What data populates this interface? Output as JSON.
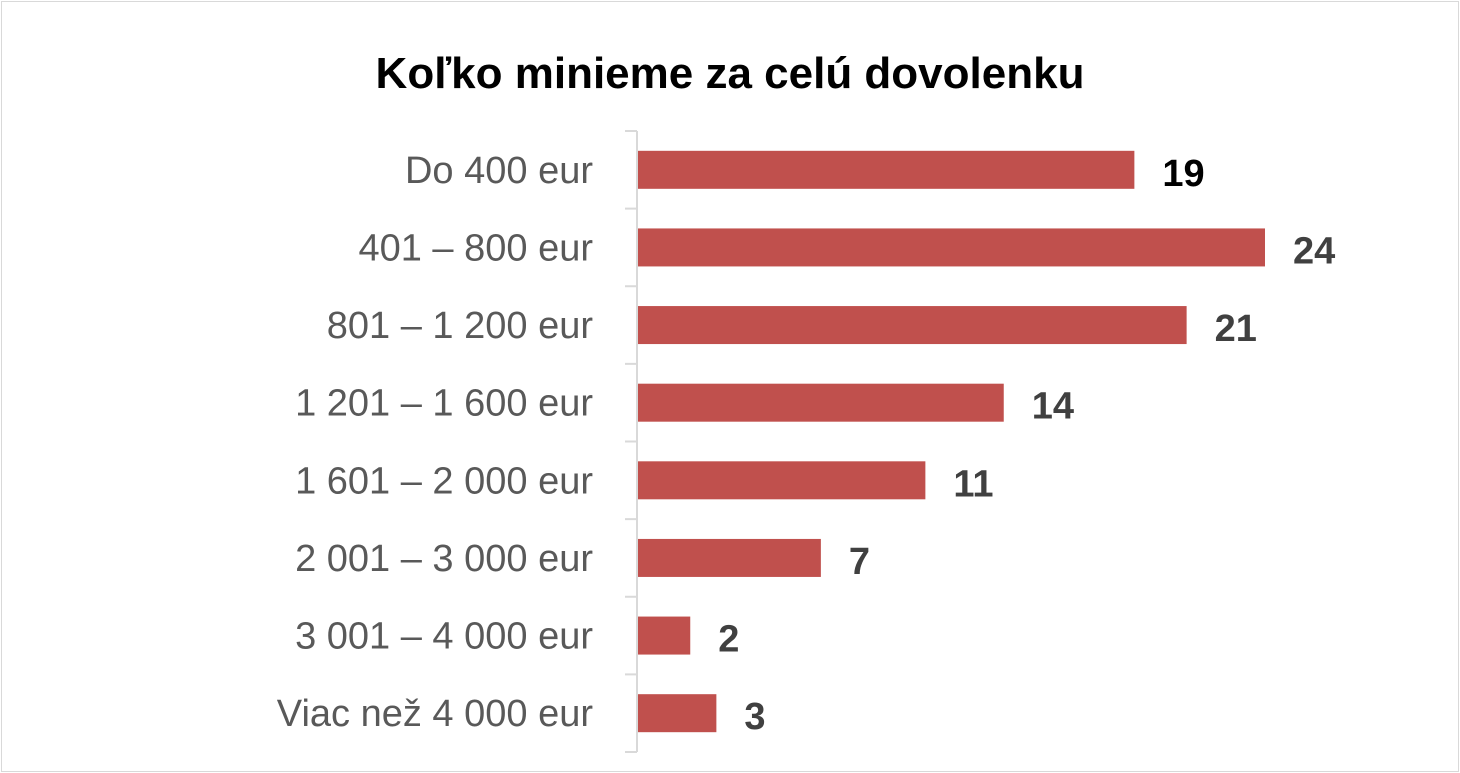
{
  "chart_data": {
    "type": "bar",
    "orientation": "horizontal",
    "title": "Koľko minieme za celú dovolenku",
    "categories": [
      "Do 400 eur",
      "401 – 800 eur",
      "801 – 1 200 eur",
      "1 201 – 1 600 eur",
      "1 601 – 2 000 eur",
      "2 001 – 3 000 eur",
      "3 001 – 4 000 eur",
      "Viac než 4 000 eur"
    ],
    "values": [
      19,
      24,
      21,
      14,
      11,
      7,
      2,
      3
    ],
    "xlim": [
      0,
      24
    ],
    "grid": false,
    "legend": "none",
    "bar_color": "#c0504d",
    "label_color": "#404040",
    "top_label_color": "#000000"
  }
}
